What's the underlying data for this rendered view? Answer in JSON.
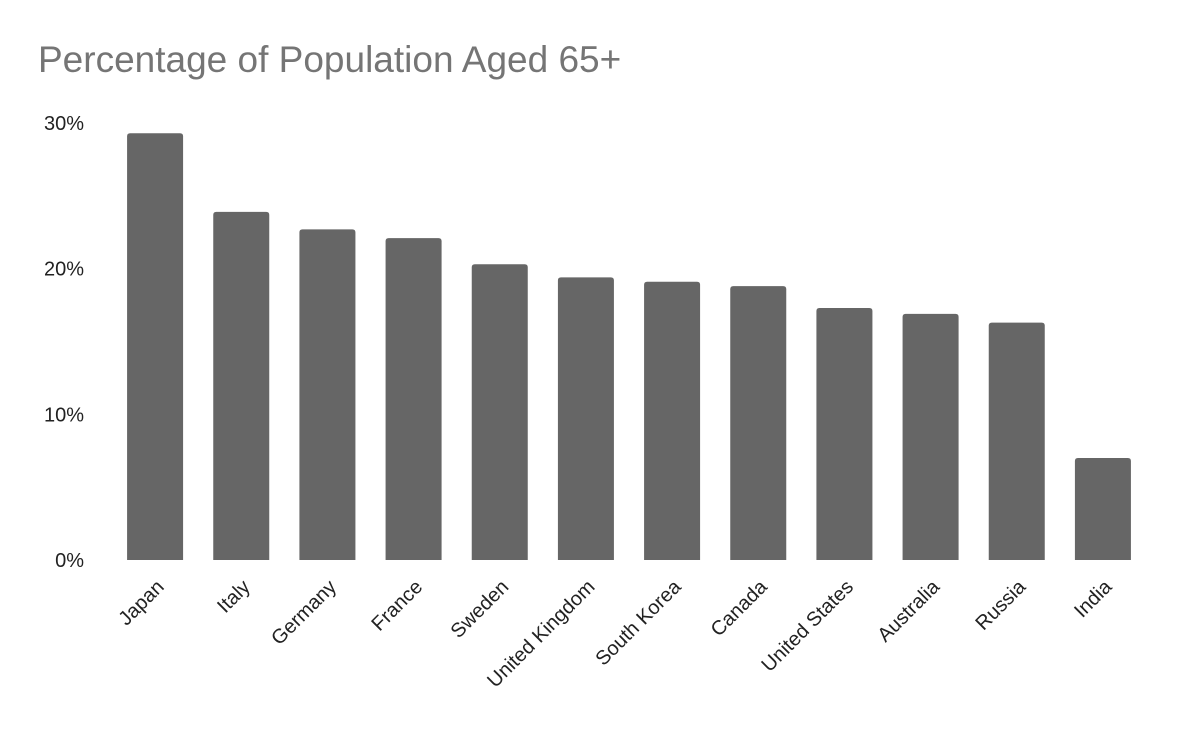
{
  "chart_data": {
    "type": "bar",
    "title": "Percentage of Population Aged 65+",
    "categories": [
      "Japan",
      "Italy",
      "Germany",
      "France",
      "Sweden",
      "United Kingdom",
      "South Korea",
      "Canada",
      "United States",
      "Australia",
      "Russia",
      "India"
    ],
    "values": [
      29.3,
      23.9,
      22.7,
      22.1,
      20.3,
      19.4,
      19.1,
      18.8,
      17.3,
      16.9,
      16.3,
      7.0
    ],
    "ylim": [
      0,
      30
    ],
    "yticks": [
      0,
      10,
      20,
      30
    ],
    "ytick_labels": [
      "0%",
      "10%",
      "20%",
      "30%"
    ],
    "xlabel": "",
    "ylabel": "",
    "grid": false,
    "legend": false,
    "bar_color": "#666666"
  }
}
